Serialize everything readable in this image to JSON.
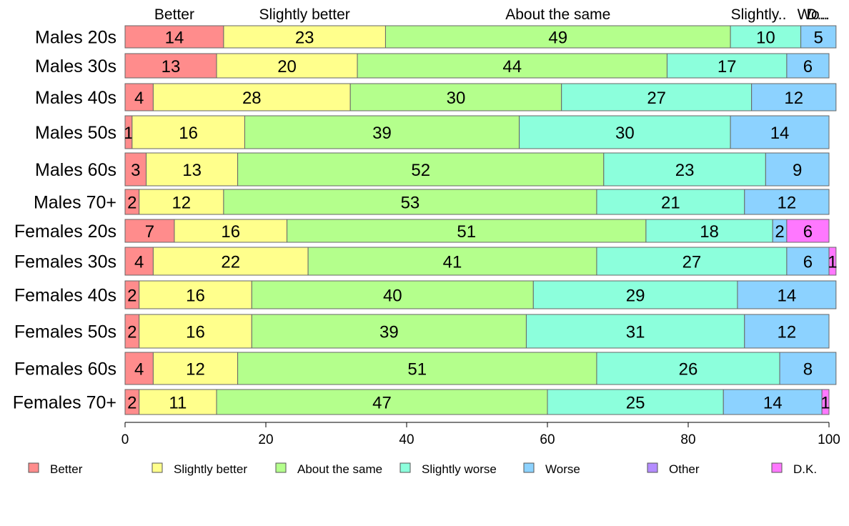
{
  "chart_data": {
    "type": "bar",
    "orientation": "horizontal",
    "stacked": true,
    "percent": true,
    "title": "",
    "xlabel": "",
    "ylabel": "",
    "xlim": [
      0,
      100
    ],
    "xticks": [
      0,
      20,
      40,
      60,
      80,
      100
    ],
    "grid": false,
    "legend_position": "bottom",
    "categories": [
      "Males 20s",
      "Males 30s",
      "Males 40s",
      "Males 50s",
      "Males 60s",
      "Males 70+",
      "Females 20s",
      "Females 30s",
      "Females 40s",
      "Females 50s",
      "Females 60s",
      "Females 70+"
    ],
    "series": [
      {
        "name": "Better",
        "color": "#FF8C8C",
        "values": [
          14,
          13,
          4,
          1,
          3,
          2,
          7,
          4,
          2,
          2,
          4,
          2
        ]
      },
      {
        "name": "Slightly better",
        "color": "#FFFF8C",
        "values": [
          23,
          20,
          28,
          16,
          13,
          12,
          16,
          22,
          16,
          16,
          12,
          11
        ]
      },
      {
        "name": "About the same",
        "color": "#B4FF8C",
        "values": [
          49,
          44,
          30,
          39,
          52,
          53,
          51,
          41,
          40,
          39,
          51,
          47
        ]
      },
      {
        "name": "Slightly worse",
        "color": "#8CFFDC",
        "values": [
          10,
          17,
          27,
          30,
          23,
          21,
          18,
          27,
          29,
          31,
          26,
          25
        ]
      },
      {
        "name": "Worse",
        "color": "#8CD2FF",
        "values": [
          5,
          6,
          12,
          14,
          9,
          12,
          2,
          6,
          14,
          12,
          8,
          14
        ]
      },
      {
        "name": "Other",
        "color": "#B48CFF",
        "values": [
          0,
          0,
          0,
          0,
          0,
          0,
          0,
          0,
          0,
          0,
          0,
          0
        ]
      },
      {
        "name": "D.K.",
        "color": "#FF78FF",
        "values": [
          0,
          0,
          0,
          0,
          0,
          0,
          6,
          1,
          0,
          0,
          0,
          1
        ]
      }
    ],
    "top_labels": [
      "Better",
      "Slightly better",
      "About the same",
      "Slightly..",
      "Wo..",
      "D..."
    ]
  }
}
